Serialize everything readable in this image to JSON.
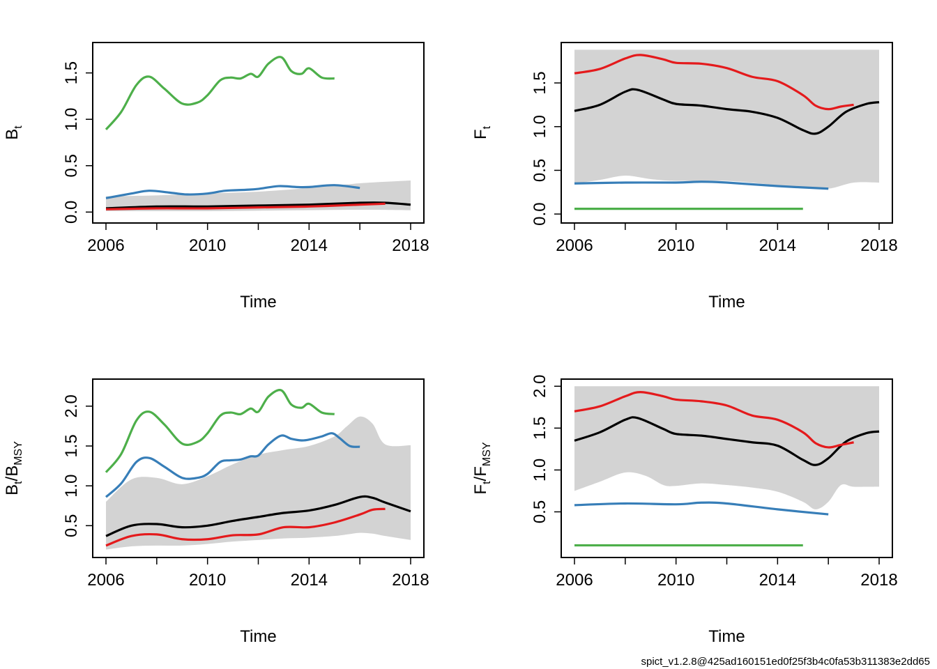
{
  "footer": "spict_v1.2.8@425ad160151ed0f25f3b4c0fa53b311383e2dd65",
  "colors": {
    "band": "#d3d3d3",
    "black": "#000000",
    "red": "#e41a1c",
    "blue": "#377eb8",
    "green": "#4daf4a"
  },
  "chart_data": [
    {
      "type": "line",
      "ylabel": {
        "base": "B",
        "sub": "t"
      },
      "xlabel": "Time",
      "xlim": [
        2006,
        2018
      ],
      "ylim": [
        -0.04,
        1.75
      ],
      "xticks": [
        2006,
        2010,
        2014,
        2018
      ],
      "yticks": [
        "0.0",
        "0.5",
        "1.0",
        "1.5"
      ],
      "band": {
        "x": [
          2006,
          2008,
          2010,
          2012,
          2014,
          2016,
          2018
        ],
        "upper": [
          0.17,
          0.18,
          0.2,
          0.22,
          0.26,
          0.31,
          0.34
        ],
        "lower": [
          0.01,
          0.01,
          0.01,
          0.015,
          0.02,
          0.025,
          0.02
        ]
      },
      "series": [
        {
          "color": "black",
          "x": [
            2006,
            2008,
            2010,
            2012,
            2014,
            2016,
            2017,
            2018
          ],
          "y": [
            0.04,
            0.06,
            0.06,
            0.07,
            0.08,
            0.1,
            0.1,
            0.08
          ]
        },
        {
          "color": "red",
          "x": [
            2006,
            2008,
            2010,
            2012,
            2014,
            2016,
            2017
          ],
          "y": [
            0.03,
            0.04,
            0.04,
            0.05,
            0.06,
            0.08,
            0.09
          ]
        },
        {
          "color": "blue",
          "x": [
            2006,
            2007,
            2007.7,
            2008.5,
            2009.2,
            2010,
            2010.7,
            2011.5,
            2012,
            2012.8,
            2013.5,
            2014,
            2015,
            2016
          ],
          "y": [
            0.15,
            0.2,
            0.23,
            0.21,
            0.19,
            0.2,
            0.23,
            0.24,
            0.25,
            0.28,
            0.27,
            0.27,
            0.29,
            0.26
          ]
        },
        {
          "color": "green",
          "x": [
            2006,
            2006.6,
            2007.2,
            2007.7,
            2008.3,
            2009,
            2009.6,
            2010,
            2010.5,
            2010.9,
            2011.3,
            2011.7,
            2012,
            2012.4,
            2012.9,
            2013.3,
            2013.7,
            2014,
            2014.5,
            2015
          ],
          "y": [
            0.89,
            1.08,
            1.37,
            1.46,
            1.33,
            1.17,
            1.18,
            1.26,
            1.42,
            1.45,
            1.44,
            1.49,
            1.46,
            1.6,
            1.67,
            1.52,
            1.49,
            1.55,
            1.45,
            1.44
          ]
        }
      ]
    },
    {
      "type": "line",
      "ylabel": {
        "base": "F",
        "sub": "t"
      },
      "xlabel": "Time",
      "xlim": [
        2006,
        2018
      ],
      "ylim": [
        -0.02,
        1.88
      ],
      "xticks": [
        2006,
        2010,
        2014,
        2018
      ],
      "yticks": [
        "0.0",
        "0.5",
        "1.0",
        "1.5"
      ],
      "band": {
        "x": [
          2006,
          2007,
          2008,
          2009,
          2010,
          2012,
          2014,
          2015,
          2016,
          2017,
          2018
        ],
        "upper": [
          1.88,
          1.88,
          1.88,
          1.88,
          1.88,
          1.88,
          1.88,
          1.88,
          1.88,
          1.88,
          1.88
        ],
        "lower": [
          0.35,
          0.39,
          0.44,
          0.4,
          0.38,
          0.38,
          0.33,
          0.3,
          0.29,
          0.36,
          0.36
        ]
      },
      "series": [
        {
          "color": "black",
          "x": [
            2006,
            2007,
            2008,
            2008.5,
            2009.5,
            2010,
            2011,
            2012,
            2013,
            2014,
            2015,
            2015.5,
            2016,
            2016.7,
            2017.5,
            2018
          ],
          "y": [
            1.18,
            1.25,
            1.4,
            1.42,
            1.31,
            1.26,
            1.24,
            1.2,
            1.17,
            1.1,
            0.96,
            0.92,
            1.0,
            1.17,
            1.26,
            1.28
          ]
        },
        {
          "color": "red",
          "x": [
            2006,
            2007,
            2008,
            2008.6,
            2009.5,
            2010,
            2011,
            2012,
            2013,
            2014,
            2015,
            2015.5,
            2016,
            2016.5,
            2017
          ],
          "y": [
            1.61,
            1.66,
            1.78,
            1.82,
            1.77,
            1.73,
            1.72,
            1.67,
            1.57,
            1.52,
            1.36,
            1.24,
            1.2,
            1.23,
            1.25
          ]
        },
        {
          "color": "blue",
          "x": [
            2006,
            2008,
            2010,
            2011,
            2012,
            2014,
            2016
          ],
          "y": [
            0.35,
            0.36,
            0.36,
            0.37,
            0.36,
            0.32,
            0.29
          ]
        },
        {
          "color": "green",
          "x": [
            2006,
            2015
          ],
          "y": [
            0.06,
            0.06
          ]
        }
      ]
    },
    {
      "type": "line",
      "ylabel": {
        "base": "B",
        "sub": "t",
        "slash": "/",
        "base2": "B",
        "sub2": "MSY"
      },
      "xlabel": "Time",
      "xlim": [
        2006,
        2018
      ],
      "ylim": [
        0.19,
        2.25
      ],
      "xticks": [
        2006,
        2010,
        2014,
        2018
      ],
      "yticks": [
        "0.5",
        "1.0",
        "1.5",
        "2.0"
      ],
      "band": {
        "x": [
          2006,
          2007,
          2008,
          2009,
          2010,
          2011,
          2012,
          2013,
          2014,
          2015,
          2015.5,
          2016,
          2016.5,
          2017,
          2018
        ],
        "upper": [
          0.8,
          1.08,
          1.1,
          1.02,
          1.12,
          1.27,
          1.39,
          1.45,
          1.5,
          1.62,
          1.75,
          1.87,
          1.78,
          1.52,
          1.51
        ],
        "lower": [
          0.2,
          0.24,
          0.25,
          0.25,
          0.27,
          0.3,
          0.32,
          0.34,
          0.35,
          0.37,
          0.39,
          0.41,
          0.4,
          0.37,
          0.32
        ]
      },
      "series": [
        {
          "color": "black",
          "x": [
            2006,
            2007,
            2008,
            2009,
            2010,
            2011,
            2012,
            2013,
            2014,
            2015,
            2016,
            2016.5,
            2017,
            2018
          ],
          "y": [
            0.37,
            0.5,
            0.52,
            0.48,
            0.5,
            0.56,
            0.61,
            0.66,
            0.69,
            0.76,
            0.86,
            0.85,
            0.79,
            0.68
          ]
        },
        {
          "color": "red",
          "x": [
            2006,
            2007,
            2008,
            2009,
            2010,
            2011,
            2012,
            2013,
            2014,
            2015,
            2016,
            2016.5,
            2017
          ],
          "y": [
            0.25,
            0.37,
            0.39,
            0.33,
            0.33,
            0.38,
            0.39,
            0.48,
            0.48,
            0.54,
            0.64,
            0.7,
            0.71
          ]
        },
        {
          "color": "blue",
          "x": [
            2006,
            2006.6,
            2007.2,
            2007.7,
            2008.3,
            2009,
            2009.6,
            2010,
            2010.5,
            2010.9,
            2011.3,
            2011.7,
            2012,
            2012.4,
            2012.9,
            2013.3,
            2013.7,
            2014,
            2014.5,
            2014.9,
            2015.2,
            2015.6,
            2016
          ],
          "y": [
            0.86,
            1.03,
            1.3,
            1.35,
            1.24,
            1.1,
            1.1,
            1.15,
            1.3,
            1.32,
            1.33,
            1.37,
            1.38,
            1.52,
            1.63,
            1.59,
            1.57,
            1.58,
            1.62,
            1.66,
            1.6,
            1.5,
            1.49
          ]
        },
        {
          "color": "green",
          "x": [
            2006,
            2006.6,
            2007.2,
            2007.7,
            2008.3,
            2009,
            2009.6,
            2010,
            2010.5,
            2010.9,
            2011.3,
            2011.7,
            2012,
            2012.4,
            2012.9,
            2013.3,
            2013.7,
            2014,
            2014.5,
            2015
          ],
          "y": [
            1.17,
            1.4,
            1.82,
            1.93,
            1.77,
            1.53,
            1.55,
            1.66,
            1.88,
            1.92,
            1.9,
            1.97,
            1.93,
            2.12,
            2.2,
            2.02,
            1.98,
            2.03,
            1.92,
            1.9
          ]
        }
      ]
    },
    {
      "type": "line",
      "ylabel": {
        "base": "F",
        "sub": "t",
        "slash": "/",
        "base2": "F",
        "sub2": "MSY"
      },
      "xlabel": "Time",
      "xlim": [
        2006,
        2018
      ],
      "ylim": [
        0.04,
        2.0
      ],
      "xticks": [
        2006,
        2010,
        2014,
        2018
      ],
      "yticks": [
        "0.5",
        "1.0",
        "1.5",
        "2.0"
      ],
      "band": {
        "x": [
          2006,
          2007,
          2008,
          2008.8,
          2009.5,
          2010,
          2011,
          2012,
          2013,
          2014,
          2015,
          2015.5,
          2016,
          2016.5,
          2017,
          2018
        ],
        "upper": [
          2.0,
          2.0,
          2.0,
          2.0,
          2.0,
          2.0,
          2.0,
          2.0,
          2.0,
          2.0,
          2.0,
          2.0,
          2.0,
          2.0,
          2.0,
          2.0
        ],
        "lower": [
          0.75,
          0.86,
          0.97,
          0.93,
          0.82,
          0.81,
          0.84,
          0.82,
          0.79,
          0.74,
          0.62,
          0.53,
          0.62,
          0.82,
          0.8,
          0.8
        ]
      },
      "series": [
        {
          "color": "black",
          "x": [
            2006,
            2007,
            2008,
            2008.5,
            2009.5,
            2010,
            2011,
            2012,
            2013,
            2014,
            2015,
            2015.5,
            2016,
            2016.7,
            2017.5,
            2018
          ],
          "y": [
            1.35,
            1.45,
            1.6,
            1.62,
            1.49,
            1.43,
            1.41,
            1.37,
            1.33,
            1.29,
            1.12,
            1.06,
            1.14,
            1.34,
            1.44,
            1.46
          ]
        },
        {
          "color": "red",
          "x": [
            2006,
            2007,
            2008,
            2008.6,
            2009.5,
            2010,
            2011,
            2012,
            2013,
            2014,
            2015,
            2015.5,
            2016,
            2016.5,
            2017
          ],
          "y": [
            1.7,
            1.76,
            1.88,
            1.93,
            1.88,
            1.84,
            1.82,
            1.77,
            1.65,
            1.6,
            1.45,
            1.32,
            1.27,
            1.3,
            1.33
          ]
        },
        {
          "color": "blue",
          "x": [
            2006,
            2008,
            2010,
            2011,
            2012,
            2014,
            2016
          ],
          "y": [
            0.58,
            0.6,
            0.59,
            0.61,
            0.6,
            0.53,
            0.47
          ]
        },
        {
          "color": "green",
          "x": [
            2006,
            2015
          ],
          "y": [
            0.1,
            0.1
          ]
        }
      ]
    }
  ]
}
